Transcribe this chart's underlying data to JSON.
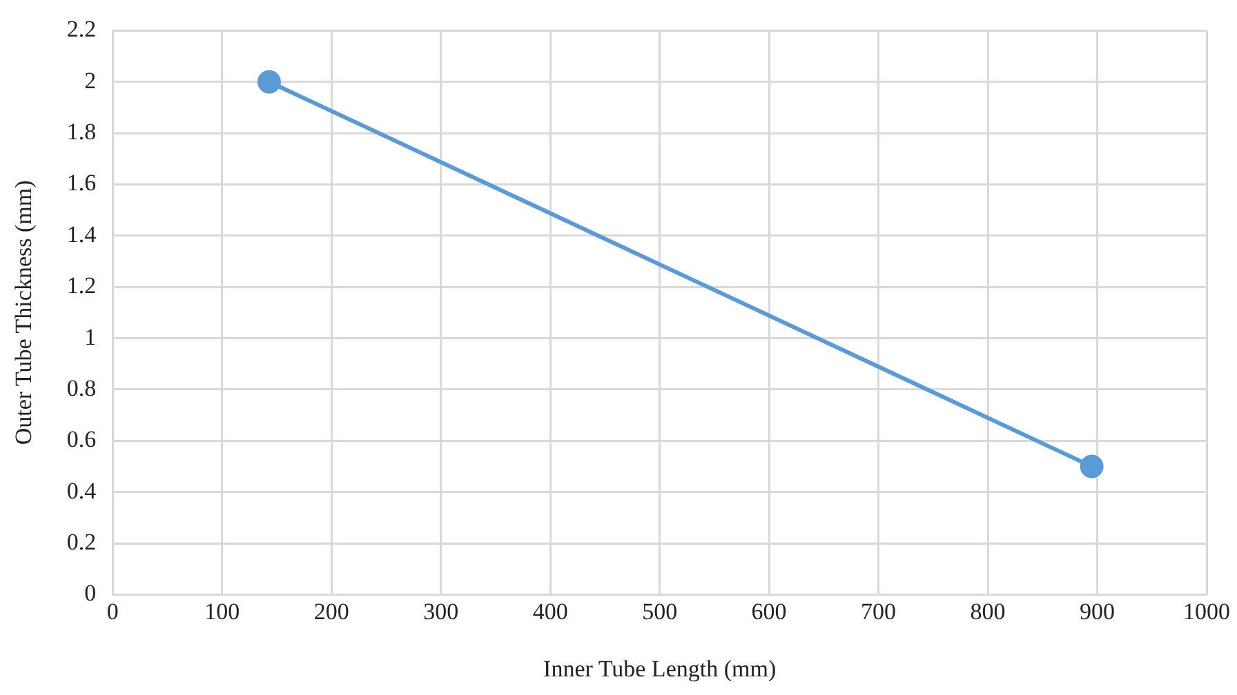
{
  "chart_data": {
    "type": "line",
    "xlabel": "Inner Tube Length (mm)",
    "ylabel": "Outer Tube Thickness (mm)",
    "x": [
      143,
      895
    ],
    "series": [
      {
        "color": "#5b9bd5",
        "values": [
          2,
          0.5
        ]
      }
    ],
    "xlim": [
      0,
      1000
    ],
    "xticks": [
      0,
      100,
      200,
      300,
      400,
      500,
      600,
      700,
      800,
      900,
      1000
    ],
    "ylim": [
      0,
      2.2
    ],
    "yticks": [
      0,
      0.2,
      0.4,
      0.6,
      0.8,
      1,
      1.2,
      1.4,
      1.6,
      1.8,
      2,
      2.2
    ],
    "grid": true,
    "marker": "circle",
    "line_style": "solid",
    "legend": false
  }
}
